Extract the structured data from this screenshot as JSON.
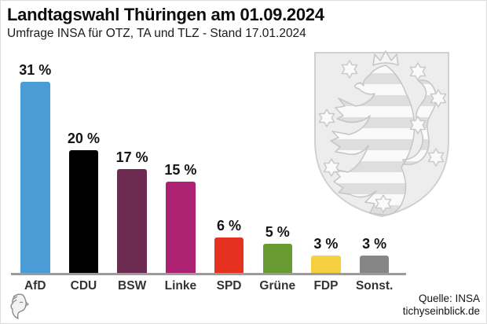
{
  "header": {
    "title": "Landtagswahl Thüringen am 01.09.2024",
    "subtitle": "Umfrage INSA für OTZ, TA und TLZ - Stand 17.01.2024"
  },
  "chart_data": {
    "type": "bar",
    "title": "Landtagswahl Thüringen am 01.09.2024",
    "subtitle": "Umfrage INSA für OTZ, TA und TLZ - Stand 17.01.2024",
    "categories": [
      "AfD",
      "CDU",
      "BSW",
      "Linke",
      "SPD",
      "Grüne",
      "FDP",
      "Sonst."
    ],
    "values": [
      31,
      20,
      17,
      15,
      6,
      5,
      3,
      3
    ],
    "value_labels": [
      "31 %",
      "20 %",
      "17 %",
      "15 %",
      "6 %",
      "5 %",
      "3 %",
      "3 %"
    ],
    "colors": [
      "#4a9cd6",
      "#000000",
      "#6d2b52",
      "#ad2173",
      "#e53220",
      "#689b31",
      "#f6d041",
      "#868686"
    ],
    "xlabel": "",
    "ylabel": "",
    "ylim": [
      0,
      33
    ],
    "grid": false,
    "legend": false,
    "axis_line_color": "#9b9b9b"
  },
  "watermark": {
    "name": "Thüringen coat of arms",
    "fill": "#ededed",
    "outline": "#cccccc"
  },
  "footer": {
    "source": "Quelle: INSA",
    "site": "tichyseinblick.de"
  }
}
